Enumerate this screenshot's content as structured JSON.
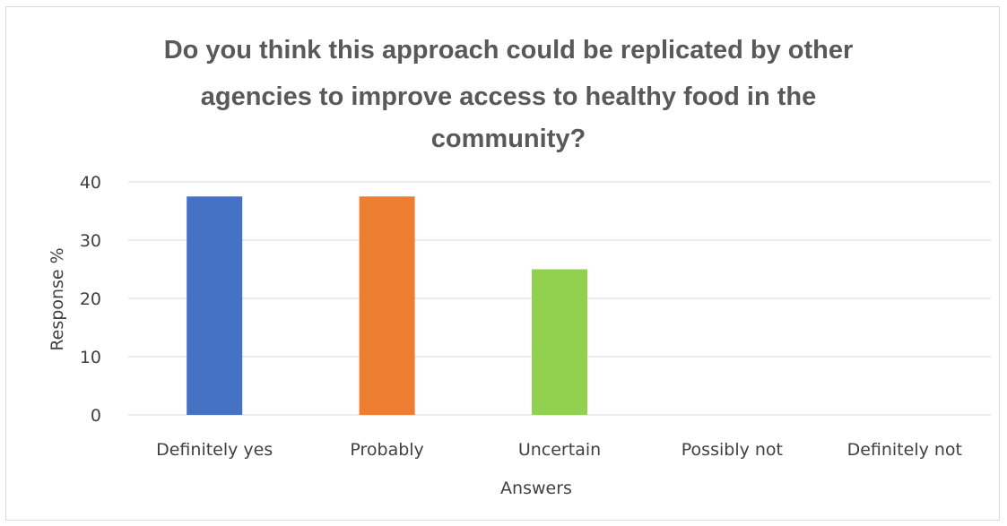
{
  "chart_data": {
    "type": "bar",
    "title_lines": [
      "Do you think this approach could be replicated by other",
      "agencies to improve access to healthy food in the",
      "community?"
    ],
    "categories": [
      "Definitely yes",
      "Probably",
      "Uncertain",
      "Possibly not",
      "Definitely not"
    ],
    "values": [
      37.5,
      37.5,
      25,
      0,
      0
    ],
    "colors": [
      "#4472c4",
      "#ed7d31",
      "#a5a5a5",
      "#92d050",
      "#5b9bd5"
    ],
    "bar_colors": [
      "#4472c4",
      "#ed7d31",
      "#92d050",
      "#92d050",
      "#92d050"
    ],
    "xlabel": "Answers",
    "ylabel": "Response %",
    "ylim": [
      0,
      40
    ],
    "yticks": [
      0,
      10,
      20,
      30,
      40
    ],
    "grid": true,
    "legend": "none"
  }
}
